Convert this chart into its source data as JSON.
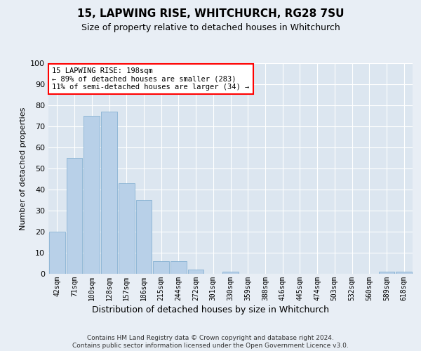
{
  "title": "15, LAPWING RISE, WHITCHURCH, RG28 7SU",
  "subtitle": "Size of property relative to detached houses in Whitchurch",
  "xlabel": "Distribution of detached houses by size in Whitchurch",
  "ylabel": "Number of detached properties",
  "categories": [
    "42sqm",
    "71sqm",
    "100sqm",
    "128sqm",
    "157sqm",
    "186sqm",
    "215sqm",
    "244sqm",
    "272sqm",
    "301sqm",
    "330sqm",
    "359sqm",
    "388sqm",
    "416sqm",
    "445sqm",
    "474sqm",
    "503sqm",
    "532sqm",
    "560sqm",
    "589sqm",
    "618sqm"
  ],
  "values": [
    20,
    55,
    75,
    77,
    43,
    35,
    6,
    6,
    2,
    0,
    1,
    0,
    0,
    0,
    0,
    0,
    0,
    0,
    0,
    1,
    1
  ],
  "bar_color": "#b8d0e8",
  "bar_edge_color": "#7aaace",
  "ylim": [
    0,
    100
  ],
  "yticks": [
    0,
    10,
    20,
    30,
    40,
    50,
    60,
    70,
    80,
    90,
    100
  ],
  "annotation_text": "15 LAPWING RISE: 198sqm\n← 89% of detached houses are smaller (283)\n11% of semi-detached houses are larger (34) →",
  "footer": "Contains HM Land Registry data © Crown copyright and database right 2024.\nContains public sector information licensed under the Open Government Licence v3.0.",
  "background_color": "#e8eef5",
  "plot_bg_color": "#dce6f0"
}
